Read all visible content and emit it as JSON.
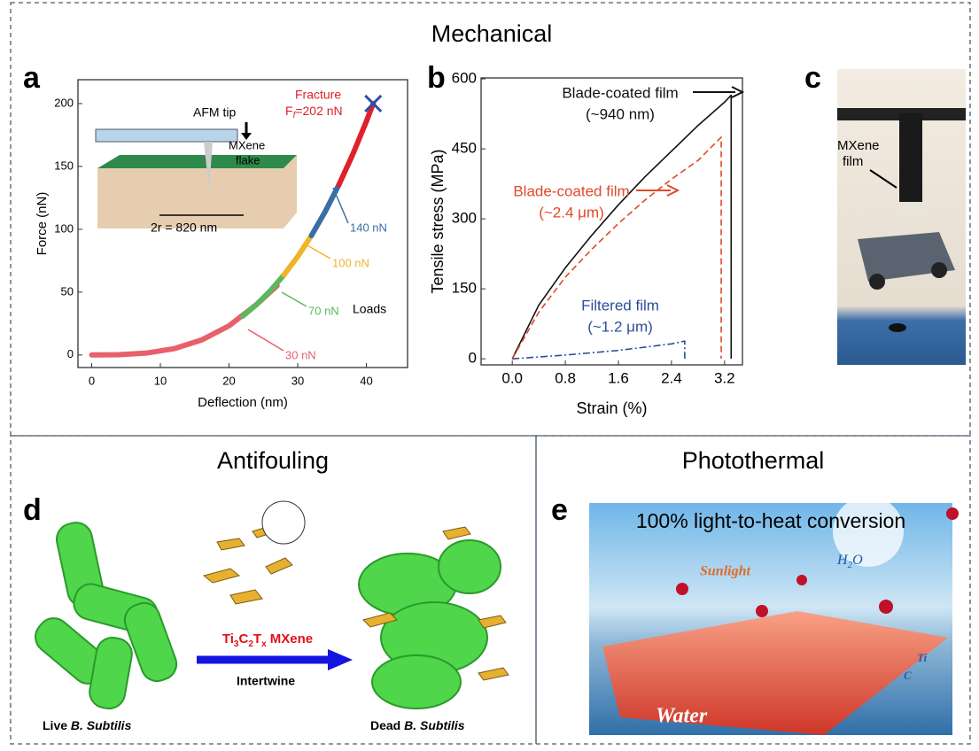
{
  "sections": {
    "mechanical": "Mechanical",
    "antifouling": "Antifouling",
    "photothermal": "Photothermal"
  },
  "panels": [
    "a",
    "b",
    "c",
    "d",
    "e"
  ],
  "chart_data": [
    {
      "type": "line",
      "xlabel": "Deflection (nm)",
      "ylabel": "Force (nN)",
      "xlim": [
        -2,
        46
      ],
      "ylim": [
        -10,
        219
      ],
      "xticks": [
        0,
        10,
        20,
        30,
        40
      ],
      "yticks": [
        0,
        50,
        100,
        150,
        200
      ],
      "line_width": 6,
      "series": [
        {
          "name": "30 nN",
          "color": "#e8606a",
          "x": [
            0,
            4,
            8,
            12,
            16,
            20,
            24,
            27
          ],
          "values": [
            0,
            0.2,
            1.5,
            5,
            11.9,
            23.2,
            40.1,
            55.1
          ]
        },
        {
          "name": "70 nN",
          "color": "#5cb85c",
          "x": [
            22,
            24,
            26,
            28
          ],
          "values": [
            30.9,
            40.1,
            51,
            63.7
          ]
        },
        {
          "name": "100 nN",
          "color": "#f0b429",
          "x": [
            28,
            30,
            32
          ],
          "values": [
            63.7,
            78.3,
            95
          ]
        },
        {
          "name": "140 nN",
          "color": "#3b6ea5",
          "x": [
            32,
            34,
            36
          ],
          "values": [
            95,
            114,
            135.4
          ]
        },
        {
          "color": "#e0202a",
          "x": [
            36,
            38,
            40,
            41
          ],
          "values": [
            135.4,
            159.3,
            185.8,
            200
          ]
        }
      ],
      "fracture_label": "Fracture",
      "fracture_force": [
        "F",
        "f",
        "=202 nN"
      ],
      "loads_label": "Loads",
      "inset": {
        "tip": "AFM tip",
        "flake": [
          "MXene",
          "flake"
        ],
        "diameter": "2r = 820 nm"
      }
    },
    {
      "type": "line",
      "xlabel": "Strain (%)",
      "ylabel": "Tensile stress (MPa)",
      "xlim": [
        -0.47,
        3.47
      ],
      "ylim": [
        -13,
        602
      ],
      "xticks": [
        {
          "value": 0,
          "label": "0.0"
        },
        0.8,
        1.6,
        2.4,
        3.2
      ],
      "yticks": [
        0,
        150,
        300,
        450,
        600
      ],
      "line_width": 1.6,
      "series": [
        {
          "name": "Blade-coated film",
          "thickness": "(~940 nm)",
          "color": "#111111",
          "dash": "solid",
          "x": [
            0,
            0.4,
            0.8,
            1.2,
            1.6,
            2.0,
            2.4,
            2.8,
            3.2,
            3.3,
            3.3
          ],
          "values": [
            0,
            115,
            195,
            265,
            330,
            390,
            445,
            500,
            550,
            565,
            0
          ]
        },
        {
          "name": "Blade-coated film",
          "thickness": "(~2.4 μm)",
          "color": "#e04a2a",
          "dash": "dashed",
          "x": [
            0,
            0.4,
            0.8,
            1.2,
            1.6,
            2.0,
            2.4,
            2.8,
            3.15,
            3.15
          ],
          "values": [
            0,
            100,
            175,
            235,
            290,
            340,
            385,
            425,
            475,
            0
          ]
        },
        {
          "name": "Filtered film",
          "thickness": "(~1.2 μm)",
          "color": "#2a4f9a",
          "dash": "dashdot",
          "x": [
            0,
            0.8,
            1.6,
            2.4,
            2.6,
            2.6
          ],
          "values": [
            0,
            8,
            18,
            32,
            38,
            0
          ]
        }
      ]
    }
  ],
  "photo_c": {
    "label": [
      "MXene",
      "film"
    ]
  },
  "panel_d": {
    "agent": [
      "Ti",
      "3",
      "C",
      "2",
      "T",
      "x",
      " MXene"
    ],
    "process": "Intertwine",
    "left": [
      "Live ",
      "B. Subtilis"
    ],
    "right": [
      "Dead ",
      "B. Subtilis"
    ]
  },
  "panel_e": {
    "title": "100% light-to-heat conversion",
    "sunlight": "Sunlight",
    "vapor": [
      "H",
      "2",
      "O"
    ],
    "water": "Water",
    "lattice": [
      "Ti",
      "C"
    ]
  }
}
